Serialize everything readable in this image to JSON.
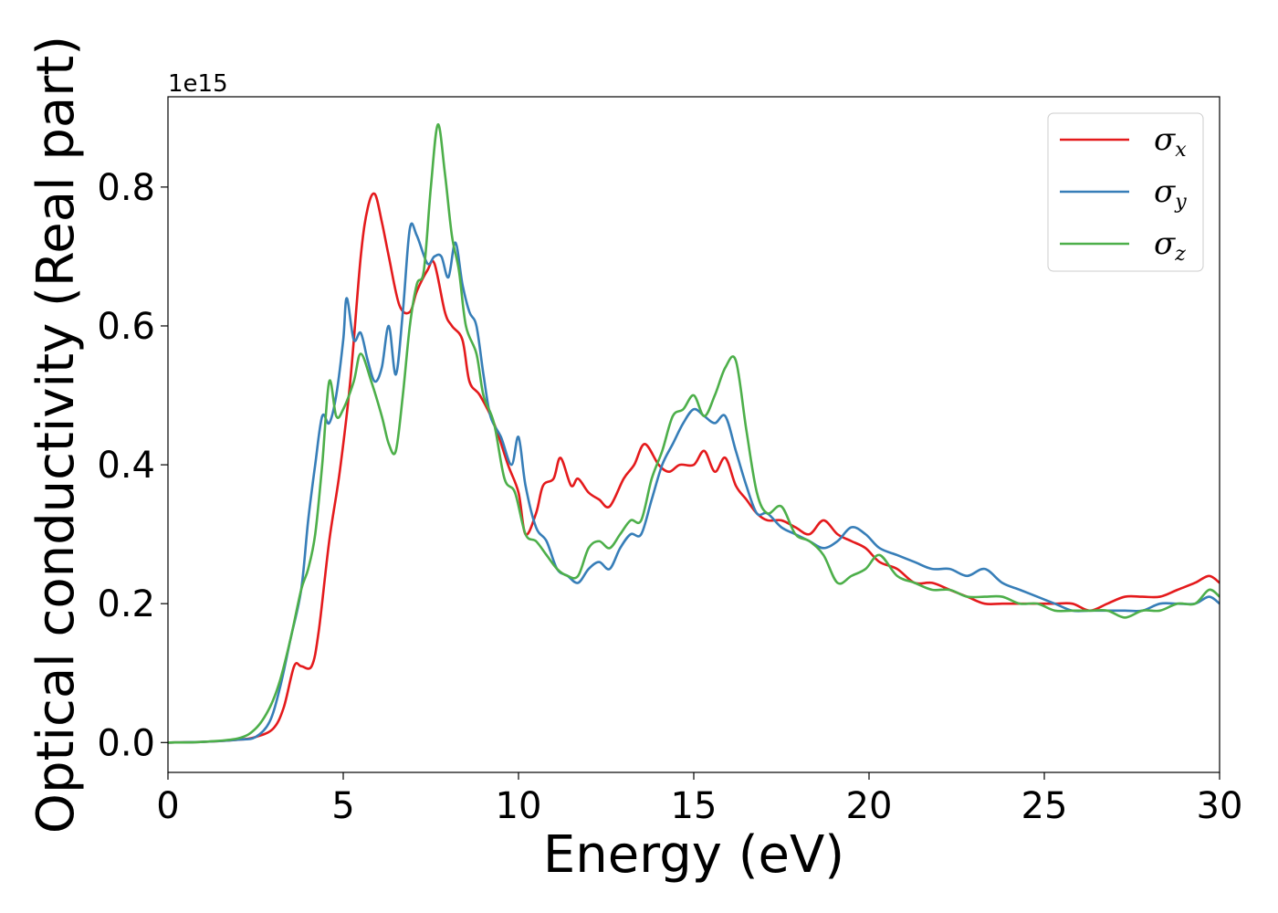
{
  "chart_data": {
    "type": "line",
    "title": "",
    "xlabel": "Energy (eV)",
    "ylabel": "Optical conductivity (Real part)",
    "y_offset_label": "1e15",
    "xlim": [
      0,
      30
    ],
    "ylim": [
      -0.043,
      0.93
    ],
    "x_ticks": [
      0,
      5,
      10,
      15,
      20,
      25,
      30
    ],
    "x_tick_labels": [
      "0",
      "5",
      "10",
      "15",
      "20",
      "25",
      "30"
    ],
    "y_ticks": [
      0.0,
      0.2,
      0.4,
      0.6,
      0.8
    ],
    "y_tick_labels": [
      "0.0",
      "0.2",
      "0.4",
      "0.6",
      "0.8"
    ],
    "grid": false,
    "legend_position": "top-right",
    "series": [
      {
        "name": "σx",
        "symbol": "σ",
        "subscript": "x",
        "color": "#e41a1c",
        "x": [
          0,
          1,
          2,
          2.5,
          3,
          3.3,
          3.6,
          3.8,
          4.1,
          4.3,
          4.6,
          4.9,
          5.2,
          5.5,
          5.7,
          5.9,
          6.1,
          6.3,
          6.6,
          6.9,
          7.1,
          7.4,
          7.6,
          7.9,
          8.1,
          8.4,
          8.6,
          8.9,
          9.3,
          9.7,
          10.0,
          10.2,
          10.5,
          10.7,
          11.0,
          11.2,
          11.5,
          11.7,
          12.0,
          12.3,
          12.6,
          13.0,
          13.3,
          13.6,
          14.0,
          14.3,
          14.6,
          15.0,
          15.3,
          15.6,
          15.9,
          16.2,
          16.5,
          16.8,
          17.1,
          17.5,
          17.9,
          18.3,
          18.7,
          19.1,
          19.5,
          19.9,
          20.3,
          20.8,
          21.3,
          21.8,
          22.3,
          22.8,
          23.3,
          23.8,
          24.3,
          24.8,
          25.3,
          25.8,
          26.3,
          26.8,
          27.3,
          27.8,
          28.3,
          28.8,
          29.3,
          29.7,
          30.0
        ],
        "values": [
          0.0,
          0.001,
          0.004,
          0.008,
          0.02,
          0.05,
          0.11,
          0.11,
          0.11,
          0.16,
          0.29,
          0.39,
          0.52,
          0.7,
          0.77,
          0.79,
          0.75,
          0.7,
          0.63,
          0.62,
          0.65,
          0.68,
          0.69,
          0.62,
          0.6,
          0.58,
          0.52,
          0.5,
          0.46,
          0.4,
          0.36,
          0.3,
          0.33,
          0.37,
          0.38,
          0.41,
          0.37,
          0.38,
          0.36,
          0.35,
          0.34,
          0.38,
          0.4,
          0.43,
          0.4,
          0.39,
          0.4,
          0.4,
          0.42,
          0.39,
          0.41,
          0.37,
          0.35,
          0.33,
          0.32,
          0.32,
          0.31,
          0.3,
          0.32,
          0.3,
          0.29,
          0.28,
          0.26,
          0.25,
          0.23,
          0.23,
          0.22,
          0.21,
          0.2,
          0.2,
          0.2,
          0.2,
          0.2,
          0.2,
          0.19,
          0.2,
          0.21,
          0.21,
          0.21,
          0.22,
          0.23,
          0.24,
          0.23
        ]
      },
      {
        "name": "σy",
        "symbol": "σ",
        "subscript": "y",
        "color": "#377eb8",
        "x": [
          0,
          1,
          2,
          2.5,
          2.9,
          3.2,
          3.5,
          3.8,
          4.0,
          4.2,
          4.4,
          4.6,
          4.8,
          5.0,
          5.1,
          5.3,
          5.5,
          5.7,
          5.9,
          6.1,
          6.3,
          6.5,
          6.7,
          6.9,
          7.1,
          7.4,
          7.6,
          7.8,
          8.0,
          8.2,
          8.4,
          8.6,
          8.8,
          9.0,
          9.2,
          9.5,
          9.8,
          10.0,
          10.2,
          10.5,
          10.8,
          11.1,
          11.4,
          11.7,
          12.0,
          12.3,
          12.6,
          12.9,
          13.2,
          13.5,
          13.8,
          14.1,
          14.4,
          14.7,
          15.0,
          15.3,
          15.6,
          15.9,
          16.2,
          16.5,
          16.8,
          17.1,
          17.5,
          17.9,
          18.3,
          18.7,
          19.1,
          19.5,
          19.9,
          20.3,
          20.8,
          21.3,
          21.8,
          22.3,
          22.8,
          23.3,
          23.8,
          24.3,
          24.8,
          25.3,
          25.8,
          26.3,
          26.8,
          27.3,
          27.8,
          28.3,
          28.8,
          29.3,
          29.7,
          30.0
        ],
        "values": [
          0.0,
          0.001,
          0.004,
          0.008,
          0.03,
          0.08,
          0.15,
          0.22,
          0.32,
          0.4,
          0.47,
          0.46,
          0.5,
          0.58,
          0.64,
          0.58,
          0.59,
          0.55,
          0.52,
          0.54,
          0.6,
          0.53,
          0.62,
          0.74,
          0.73,
          0.69,
          0.7,
          0.7,
          0.67,
          0.72,
          0.66,
          0.62,
          0.6,
          0.53,
          0.47,
          0.44,
          0.4,
          0.44,
          0.37,
          0.31,
          0.29,
          0.25,
          0.24,
          0.23,
          0.25,
          0.26,
          0.25,
          0.28,
          0.3,
          0.3,
          0.35,
          0.4,
          0.43,
          0.46,
          0.48,
          0.47,
          0.46,
          0.47,
          0.42,
          0.37,
          0.33,
          0.33,
          0.31,
          0.3,
          0.29,
          0.28,
          0.29,
          0.31,
          0.3,
          0.28,
          0.27,
          0.26,
          0.25,
          0.25,
          0.24,
          0.25,
          0.23,
          0.22,
          0.21,
          0.2,
          0.19,
          0.19,
          0.19,
          0.19,
          0.19,
          0.2,
          0.2,
          0.2,
          0.21,
          0.2
        ]
      },
      {
        "name": "σz",
        "symbol": "σ",
        "subscript": "z",
        "color": "#4daf4a",
        "x": [
          0,
          1,
          2,
          2.5,
          2.9,
          3.2,
          3.5,
          3.8,
          4.0,
          4.2,
          4.4,
          4.6,
          4.8,
          5.0,
          5.3,
          5.5,
          5.8,
          6.1,
          6.3,
          6.5,
          6.7,
          6.9,
          7.1,
          7.3,
          7.5,
          7.7,
          7.9,
          8.1,
          8.3,
          8.5,
          8.8,
          9.0,
          9.3,
          9.6,
          9.9,
          10.2,
          10.5,
          10.8,
          11.1,
          11.4,
          11.7,
          12.0,
          12.3,
          12.6,
          12.9,
          13.2,
          13.5,
          13.8,
          14.1,
          14.4,
          14.7,
          15.0,
          15.3,
          15.6,
          15.9,
          16.2,
          16.5,
          16.8,
          17.1,
          17.5,
          17.9,
          18.3,
          18.7,
          19.1,
          19.5,
          19.9,
          20.3,
          20.8,
          21.3,
          21.8,
          22.3,
          22.8,
          23.3,
          23.8,
          24.3,
          24.8,
          25.3,
          25.8,
          26.3,
          26.8,
          27.3,
          27.8,
          28.3,
          28.8,
          29.3,
          29.7,
          30.0
        ],
        "values": [
          0.0,
          0.001,
          0.006,
          0.02,
          0.05,
          0.09,
          0.15,
          0.22,
          0.25,
          0.3,
          0.4,
          0.52,
          0.47,
          0.48,
          0.52,
          0.56,
          0.52,
          0.47,
          0.43,
          0.42,
          0.5,
          0.6,
          0.66,
          0.68,
          0.8,
          0.89,
          0.82,
          0.73,
          0.68,
          0.6,
          0.56,
          0.5,
          0.46,
          0.38,
          0.36,
          0.3,
          0.29,
          0.27,
          0.25,
          0.24,
          0.24,
          0.28,
          0.29,
          0.28,
          0.3,
          0.32,
          0.32,
          0.38,
          0.42,
          0.47,
          0.48,
          0.5,
          0.47,
          0.5,
          0.54,
          0.55,
          0.45,
          0.36,
          0.33,
          0.34,
          0.3,
          0.29,
          0.27,
          0.23,
          0.24,
          0.25,
          0.27,
          0.24,
          0.23,
          0.22,
          0.22,
          0.21,
          0.21,
          0.21,
          0.2,
          0.2,
          0.19,
          0.19,
          0.19,
          0.19,
          0.18,
          0.19,
          0.19,
          0.2,
          0.2,
          0.22,
          0.21
        ]
      }
    ]
  }
}
